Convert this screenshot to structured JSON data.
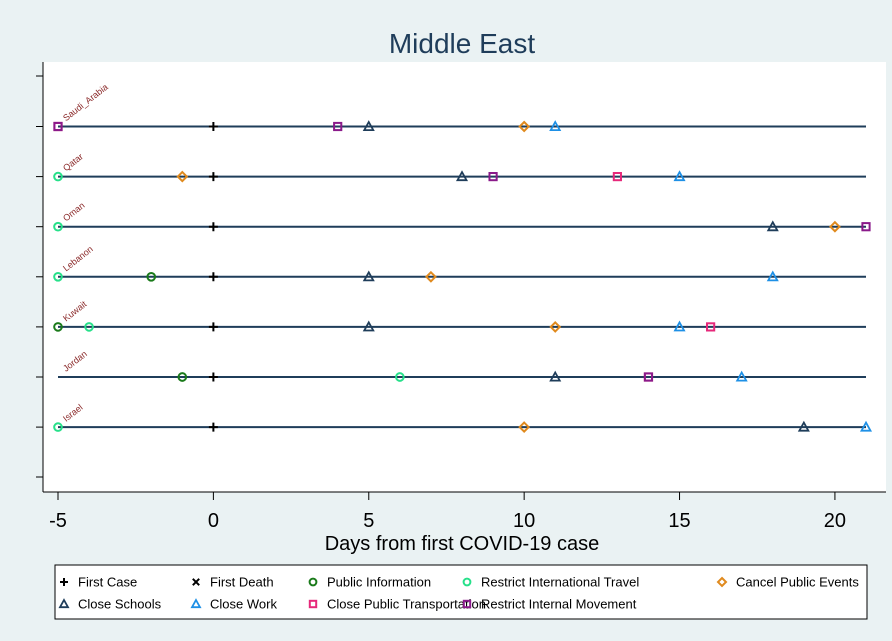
{
  "chart_data": {
    "type": "scatter",
    "title": "Middle East",
    "xlabel": "Days from first COVID-19 case",
    "ylabel": "",
    "xlim": [
      -5,
      21
    ],
    "x_ticks": [
      -5,
      0,
      5,
      10,
      15,
      20
    ],
    "x_tick_labels": [
      "-5",
      "0",
      "5",
      "10",
      "15",
      "20"
    ],
    "grid": false,
    "legend_position": "bottom",
    "colors": {
      "page_background": "#eaf2f3",
      "plot_background": "#ffffff",
      "line": "#1f3d5a",
      "axis": "#000000",
      "country_label": "#8b2a2a"
    },
    "countries": [
      "Saudi_Arabia",
      "Qatar",
      "Oman",
      "Lebanon",
      "Kuwait",
      "Jordan",
      "Israel"
    ],
    "series": [
      {
        "name": "First Case",
        "marker": "plus",
        "color": "#000000",
        "points": [
          {
            "country": "Saudi_Arabia",
            "x": 0
          },
          {
            "country": "Qatar",
            "x": 0
          },
          {
            "country": "Oman",
            "x": 0
          },
          {
            "country": "Lebanon",
            "x": 0
          },
          {
            "country": "Kuwait",
            "x": 0
          },
          {
            "country": "Jordan",
            "x": 0
          },
          {
            "country": "Israel",
            "x": 0
          }
        ]
      },
      {
        "name": "First Death",
        "marker": "x",
        "color": "#000000",
        "points": []
      },
      {
        "name": "Public Information",
        "marker": "circle",
        "color": "#1a7a1a",
        "points": [
          {
            "country": "Lebanon",
            "x": -2
          },
          {
            "country": "Kuwait",
            "x": -5
          },
          {
            "country": "Jordan",
            "x": -1
          }
        ]
      },
      {
        "name": "Restrict International Travel",
        "marker": "circle",
        "color": "#27e08a",
        "points": [
          {
            "country": "Qatar",
            "x": -5
          },
          {
            "country": "Oman",
            "x": -5
          },
          {
            "country": "Lebanon",
            "x": -5
          },
          {
            "country": "Kuwait",
            "x": -4
          },
          {
            "country": "Jordan",
            "x": 6
          },
          {
            "country": "Israel",
            "x": -5
          }
        ]
      },
      {
        "name": "Cancel Public Events",
        "marker": "diamond",
        "color": "#e08a1e",
        "points": [
          {
            "country": "Saudi_Arabia",
            "x": 10
          },
          {
            "country": "Qatar",
            "x": -1
          },
          {
            "country": "Oman",
            "x": 20
          },
          {
            "country": "Lebanon",
            "x": 7
          },
          {
            "country": "Kuwait",
            "x": 11
          },
          {
            "country": "Israel",
            "x": 10
          }
        ]
      },
      {
        "name": "Close Schools",
        "marker": "triangle",
        "color": "#1f3d5a",
        "points": [
          {
            "country": "Saudi_Arabia",
            "x": 5
          },
          {
            "country": "Qatar",
            "x": 8
          },
          {
            "country": "Oman",
            "x": 18
          },
          {
            "country": "Lebanon",
            "x": 5
          },
          {
            "country": "Kuwait",
            "x": 5
          },
          {
            "country": "Jordan",
            "x": 11
          },
          {
            "country": "Israel",
            "x": 19
          }
        ]
      },
      {
        "name": "Close Work",
        "marker": "triangle",
        "color": "#1e90e6",
        "points": [
          {
            "country": "Saudi_Arabia",
            "x": 11
          },
          {
            "country": "Qatar",
            "x": 15
          },
          {
            "country": "Lebanon",
            "x": 18
          },
          {
            "country": "Kuwait",
            "x": 15
          },
          {
            "country": "Jordan",
            "x": 17
          },
          {
            "country": "Israel",
            "x": 21
          }
        ]
      },
      {
        "name": "Close Public Transportation",
        "marker": "square",
        "color": "#e6287a",
        "points": [
          {
            "country": "Saudi_Arabia",
            "x": -5
          },
          {
            "country": "Qatar",
            "x": 13
          },
          {
            "country": "Kuwait",
            "x": 16
          },
          {
            "country": "Jordan",
            "x": 14
          }
        ]
      },
      {
        "name": "Restrict Internal Movement",
        "marker": "square",
        "color": "#8a1a8a",
        "points": [
          {
            "country": "Saudi_Arabia",
            "x": -5
          },
          {
            "country": "Saudi_Arabia",
            "x": 4
          },
          {
            "country": "Qatar",
            "x": 9
          },
          {
            "country": "Oman",
            "x": 21
          },
          {
            "country": "Jordan",
            "x": 14
          }
        ]
      }
    ]
  }
}
